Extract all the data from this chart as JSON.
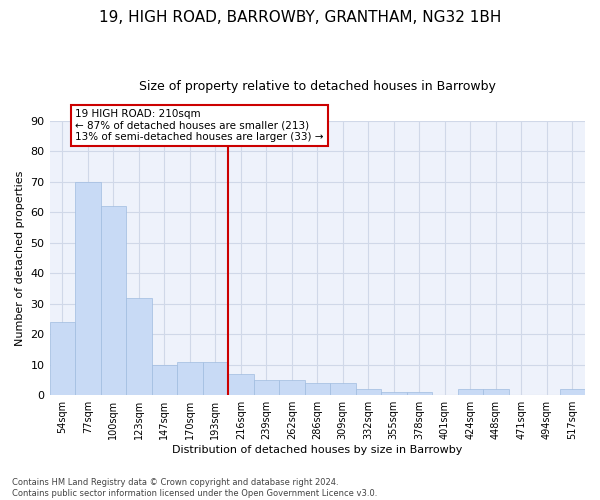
{
  "title1": "19, HIGH ROAD, BARROWBY, GRANTHAM, NG32 1BH",
  "title2": "Size of property relative to detached houses in Barrowby",
  "xlabel": "Distribution of detached houses by size in Barrowby",
  "ylabel": "Number of detached properties",
  "categories": [
    "54sqm",
    "77sqm",
    "100sqm",
    "123sqm",
    "147sqm",
    "170sqm",
    "193sqm",
    "216sqm",
    "239sqm",
    "262sqm",
    "286sqm",
    "309sqm",
    "332sqm",
    "355sqm",
    "378sqm",
    "401sqm",
    "424sqm",
    "448sqm",
    "471sqm",
    "494sqm",
    "517sqm"
  ],
  "values": [
    24,
    70,
    62,
    32,
    10,
    11,
    11,
    7,
    5,
    5,
    4,
    4,
    2,
    1,
    1,
    0,
    2,
    2,
    0,
    0,
    2
  ],
  "bar_color": "#c8daf5",
  "bar_edge_color": "#a0bce0",
  "grid_color": "#d0d8e8",
  "background_color": "#eef2fb",
  "vline_color": "#cc0000",
  "annotation_line1": "19 HIGH ROAD: 210sqm",
  "annotation_line2": "← 87% of detached houses are smaller (213)",
  "annotation_line3": "13% of semi-detached houses are larger (33) →",
  "annotation_box_color": "#ffffff",
  "annotation_box_edge": "#cc0000",
  "footer_text": "Contains HM Land Registry data © Crown copyright and database right 2024.\nContains public sector information licensed under the Open Government Licence v3.0.",
  "ylim": [
    0,
    90
  ],
  "title1_fontsize": 11,
  "title2_fontsize": 9,
  "ylabel_fontsize": 8,
  "xlabel_fontsize": 8,
  "tick_fontsize": 7,
  "ytick_fontsize": 8,
  "annotation_fontsize": 7.5,
  "footer_fontsize": 6
}
